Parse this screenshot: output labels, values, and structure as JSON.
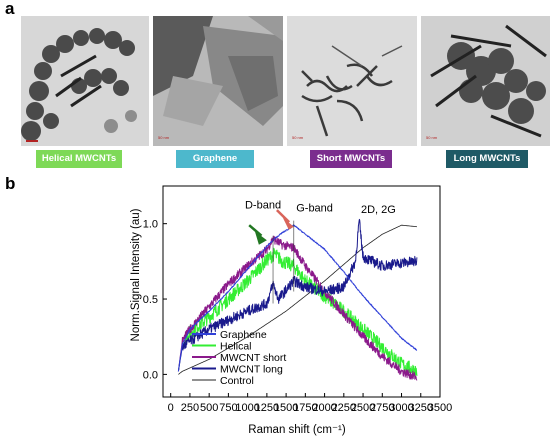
{
  "panel_a": {
    "letter": "a",
    "images": [
      {
        "label": "Helical MWCNTs",
        "color": "#7ed957",
        "scale": "50 nm"
      },
      {
        "label": "Graphene",
        "color": "#4db8cc",
        "scale": "50 nm"
      },
      {
        "label": "Short MWCNTs",
        "color": "#7b2d8e",
        "scale": "50 nm"
      },
      {
        "label": "Long MWCNTs",
        "color": "#1f5a66",
        "scale": "50 nm"
      }
    ]
  },
  "panel_b": {
    "letter": "b"
  },
  "chart_data": {
    "type": "line",
    "xlabel": "Raman shift (cm⁻¹)",
    "ylabel": "Norm.Signal Intensity (au)",
    "xlim": [
      -100,
      3500
    ],
    "ylim": [
      -0.15,
      1.25
    ],
    "xticks": [
      0,
      250,
      500,
      750,
      1000,
      1250,
      1500,
      1750,
      2000,
      2250,
      2500,
      2750,
      3000,
      3250,
      3500
    ],
    "yticks": [
      0.0,
      0.5,
      1.0
    ],
    "ytick_labels": [
      "0.0",
      "0.5",
      "1.0"
    ],
    "grid": false,
    "legend_position": "bottom-left",
    "annotations": [
      {
        "text": "D-band",
        "x": 1350
      },
      {
        "text": "G-band",
        "x": 1600
      },
      {
        "text": "2D, 2G",
        "x": 2700
      }
    ],
    "series": [
      {
        "name": "Graphene",
        "color": "#3040d8",
        "x": [
          100,
          150,
          250,
          500,
          750,
          1000,
          1250,
          1350,
          1450,
          1550,
          1600,
          1750,
          2000,
          2250,
          2500,
          2750,
          3000,
          3200
        ],
        "y": [
          0.02,
          0.2,
          0.3,
          0.42,
          0.55,
          0.7,
          0.85,
          0.9,
          0.94,
          0.97,
          0.99,
          0.93,
          0.83,
          0.68,
          0.52,
          0.38,
          0.24,
          0.16
        ]
      },
      {
        "name": "Helical",
        "color": "#33ee33",
        "x": [
          100,
          150,
          250,
          500,
          750,
          1000,
          1250,
          1350,
          1450,
          1600,
          1750,
          2000,
          2250,
          2500,
          2750,
          3000,
          3200
        ],
        "y": [
          0.02,
          0.2,
          0.28,
          0.38,
          0.5,
          0.62,
          0.76,
          0.8,
          0.75,
          0.72,
          0.62,
          0.52,
          0.42,
          0.3,
          0.18,
          0.07,
          0.02
        ]
      },
      {
        "name": "MWCNT short",
        "color": "#8b1a8b",
        "x": [
          100,
          150,
          250,
          500,
          750,
          1000,
          1250,
          1330,
          1450,
          1600,
          1750,
          2000,
          2250,
          2500,
          2750,
          3000,
          3200
        ],
        "y": [
          0.02,
          0.22,
          0.3,
          0.45,
          0.6,
          0.72,
          0.83,
          0.9,
          0.86,
          0.84,
          0.72,
          0.55,
          0.4,
          0.25,
          0.12,
          0.02,
          -0.02
        ]
      },
      {
        "name": "MWCNT long",
        "color": "#1a1a8c",
        "x": [
          100,
          150,
          250,
          500,
          750,
          1000,
          1250,
          1330,
          1400,
          1600,
          1750,
          2000,
          2250,
          2400,
          2450,
          2500,
          2750,
          3000,
          3200
        ],
        "y": [
          0.02,
          0.18,
          0.22,
          0.3,
          0.36,
          0.42,
          0.47,
          0.6,
          0.5,
          0.62,
          0.58,
          0.55,
          0.58,
          0.75,
          1.02,
          0.78,
          0.72,
          0.74,
          0.75
        ]
      },
      {
        "name": "Control",
        "color": "#222222",
        "x": [
          100,
          150,
          500,
          1000,
          1500,
          2000,
          2500,
          2750,
          3000,
          3200
        ],
        "y": [
          0.0,
          0.02,
          0.1,
          0.25,
          0.42,
          0.62,
          0.84,
          0.93,
          0.99,
          0.98
        ]
      }
    ]
  }
}
